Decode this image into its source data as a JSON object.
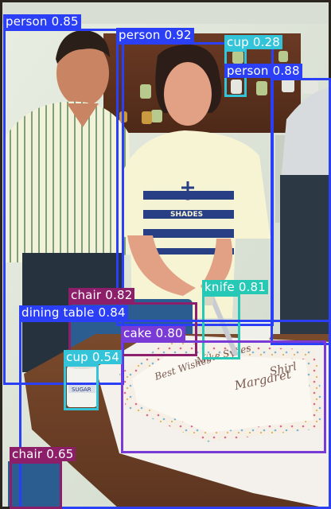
{
  "image": {
    "description_name": "object-detection-result",
    "cake_text": [
      "Margaret",
      "Shirl",
      "Best Wishes",
      "Mike Sydes"
    ],
    "shirt_text": "SHADES",
    "cup_text": "SUGAR"
  },
  "detections": [
    {
      "id": "person-1",
      "label": "person 0.85",
      "class": "person",
      "score": 0.85,
      "color": "#2a3ff6"
    },
    {
      "id": "person-2",
      "label": "person 0.92",
      "class": "person",
      "score": 0.92,
      "color": "#2a3ff6"
    },
    {
      "id": "cup-1",
      "label": "cup 0.28",
      "class": "cup",
      "score": 0.28,
      "color": "#33c4d9"
    },
    {
      "id": "person-3",
      "label": "person 0.88",
      "class": "person",
      "score": 0.88,
      "color": "#2a3ff6"
    },
    {
      "id": "chair-1",
      "label": "chair 0.82",
      "class": "chair",
      "score": 0.82,
      "color": "#8d1f6a"
    },
    {
      "id": "knife-1",
      "label": "knife 0.81",
      "class": "knife",
      "score": 0.81,
      "color": "#25c9b5"
    },
    {
      "id": "dining-table-1",
      "label": "dining table 0.84",
      "class": "dining table",
      "score": 0.84,
      "color": "#2a3ff6"
    },
    {
      "id": "cake-1",
      "label": "cake 0.80",
      "class": "cake",
      "score": 0.8,
      "color": "#7a3ad6"
    },
    {
      "id": "cup-2",
      "label": "cup 0.54",
      "class": "cup",
      "score": 0.54,
      "color": "#33c4d9"
    },
    {
      "id": "chair-2",
      "label": "chair 0.65",
      "class": "chair",
      "score": 0.65,
      "color": "#8d1f6a"
    }
  ]
}
